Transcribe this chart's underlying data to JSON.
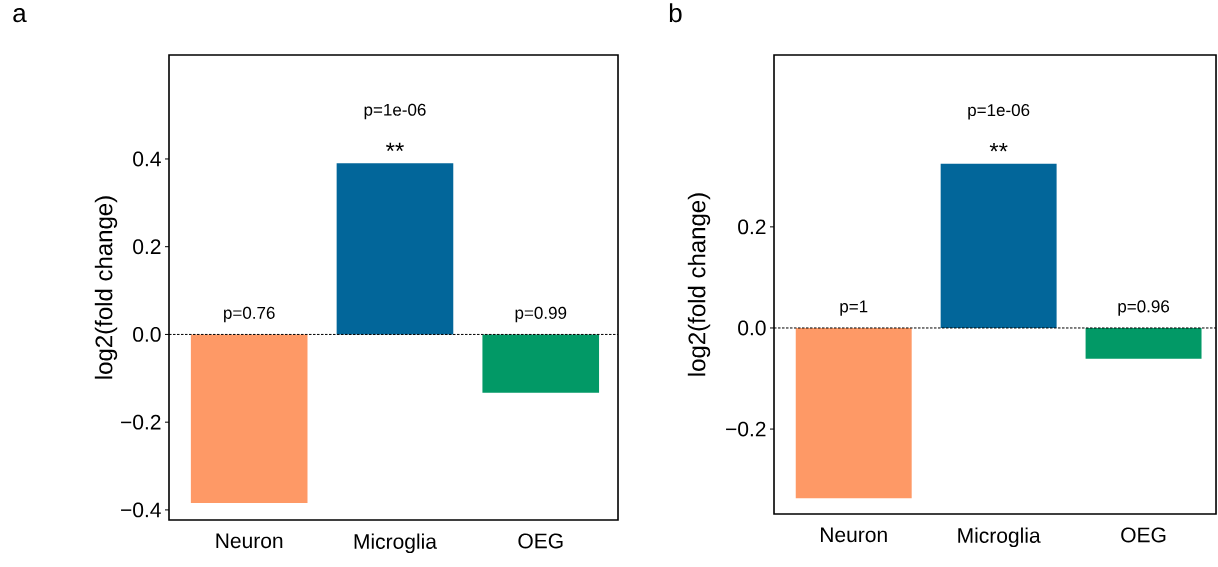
{
  "chart_data": [
    {
      "type": "bar",
      "title": "a",
      "ylabel": "log2(fold change)",
      "categories": [
        "Neuron",
        "Microglia",
        "OEG"
      ],
      "values": [
        -0.384,
        0.39,
        -0.133
      ],
      "colors": [
        "#fe9966",
        "#02669a",
        "#029966"
      ],
      "ylim": [
        -0.423,
        0.637
      ],
      "yticks": [
        {
          "value": -0.4,
          "label": "−0.4"
        },
        {
          "value": -0.2,
          "label": "−0.2"
        },
        {
          "value": 0,
          "label": "0.0"
        },
        {
          "value": 0.2,
          "label": "0.2"
        },
        {
          "value": 0.4,
          "label": "0.4"
        }
      ],
      "ref_lines": [
        {
          "axis": "y",
          "value": 0,
          "line_style": "dashed"
        }
      ],
      "annotations": [
        {
          "text": "p=0.76",
          "x": "Neuron",
          "y": 0
        },
        {
          "text": "**",
          "x": "Microglia",
          "y": 0.39
        },
        {
          "text": "p=1e-06",
          "x": "Microglia",
          "y": 0.39
        },
        {
          "text": "p=0.99",
          "x": "OEG",
          "y": 0
        }
      ]
    },
    {
      "type": "bar",
      "title": "b",
      "ylabel": "log2(fold change)",
      "categories": [
        "Neuron",
        "Microglia",
        "OEG"
      ],
      "values": [
        -0.337,
        0.325,
        -0.061
      ],
      "colors": [
        "#fe9966",
        "#02669a",
        "#029966"
      ],
      "ylim": [
        -0.368,
        0.54
      ],
      "yticks": [
        {
          "value": -0.2,
          "label": "−0.2"
        },
        {
          "value": 0,
          "label": "0.0"
        },
        {
          "value": 0.2,
          "label": "0.2"
        }
      ],
      "ref_lines": [
        {
          "axis": "y",
          "value": 0,
          "line_style": "dashed"
        }
      ],
      "annotations": [
        {
          "text": "p=1",
          "x": "Neuron",
          "y": 0
        },
        {
          "text": "**",
          "x": "Microglia",
          "y": 0.325
        },
        {
          "text": "p=1e-06",
          "x": "Microglia",
          "y": 0.325
        },
        {
          "text": "p=0.96",
          "x": "OEG",
          "y": 0
        }
      ]
    }
  ]
}
